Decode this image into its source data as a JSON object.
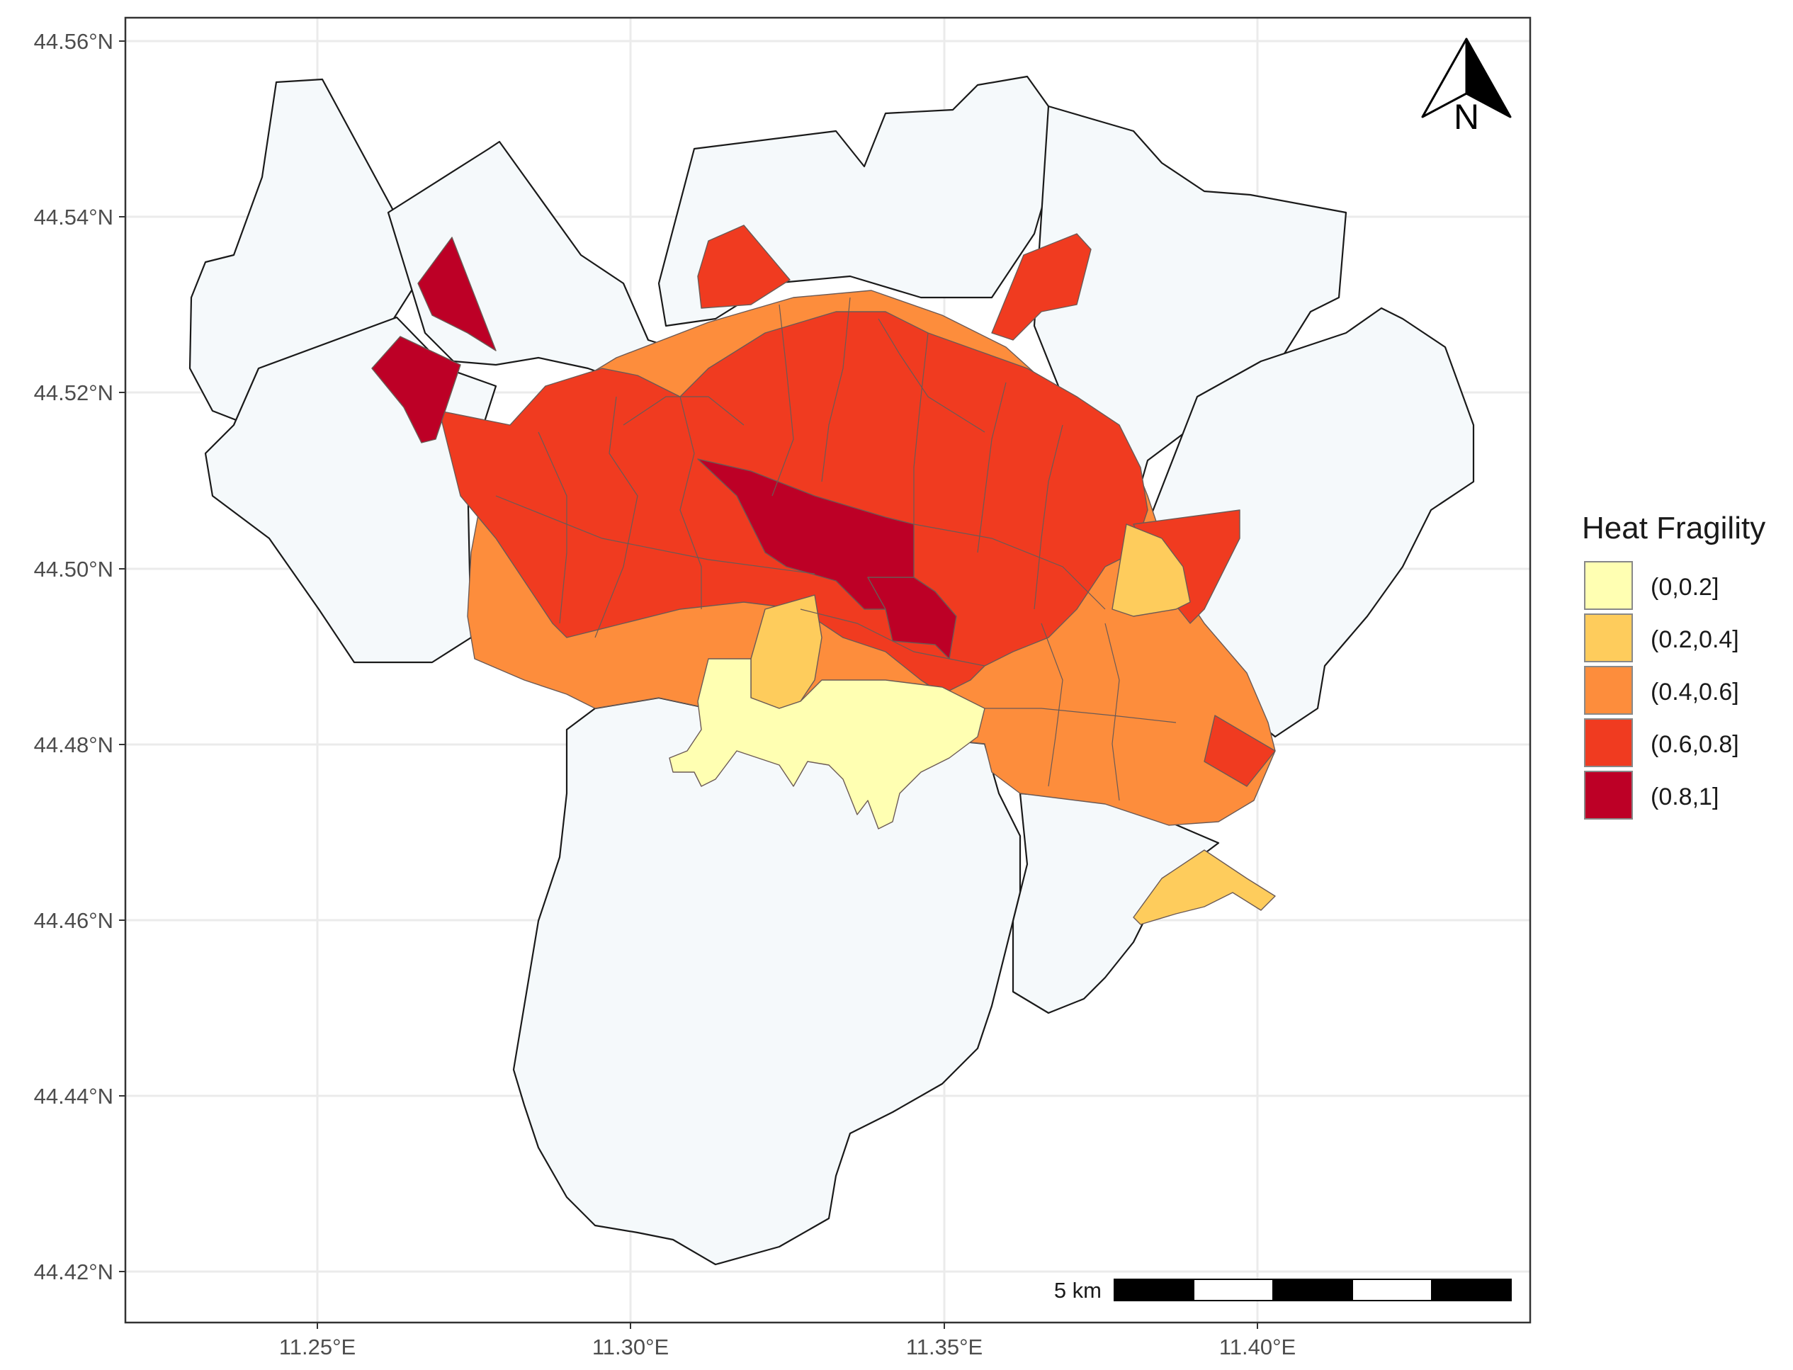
{
  "map": {
    "x_axis": {
      "ticks": [
        "11.25°E",
        "11.30°E",
        "11.35°E",
        "11.40°E"
      ]
    },
    "y_axis": {
      "ticks": [
        "44.56°N",
        "44.54°N",
        "44.52°N",
        "44.50°N",
        "44.48°N",
        "44.46°N",
        "44.44°N",
        "44.42°N"
      ]
    },
    "north_arrow": {
      "letter": "N"
    },
    "scale_bar": {
      "label": "5 km"
    },
    "legend": {
      "title": "Heat Fragility",
      "items": [
        {
          "label": "(0,0.2]",
          "color": "#ffffb2"
        },
        {
          "label": "(0.2,0.4]",
          "color": "#fecc5c"
        },
        {
          "label": "(0.4,0.6]",
          "color": "#fd8d3c"
        },
        {
          "label": "(0.6,0.8]",
          "color": "#f03b20"
        },
        {
          "label": "(0.8,1]",
          "color": "#bd0026"
        }
      ]
    },
    "no_data_color": "#f5f9fb",
    "gridlines": true
  }
}
